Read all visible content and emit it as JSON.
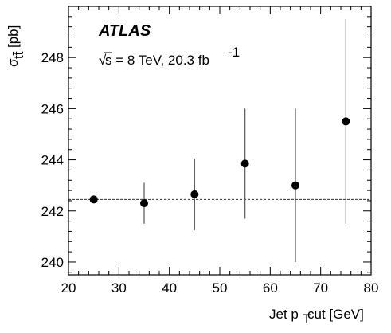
{
  "chart_data": {
    "type": "scatter",
    "x": [
      25,
      35,
      45,
      55,
      65,
      75
    ],
    "y": [
      242.45,
      242.3,
      242.65,
      243.85,
      243.0,
      245.5
    ],
    "y_err_high": [
      242.45,
      243.1,
      244.05,
      246.0,
      246.0,
      249.5
    ],
    "y_err_low": [
      242.45,
      241.5,
      241.25,
      241.7,
      240.0,
      241.5
    ],
    "reference_line": 242.45,
    "xlim": [
      20,
      80
    ],
    "ylim": [
      239.5,
      250
    ],
    "x_ticks": [
      "20",
      "30",
      "40",
      "50",
      "60",
      "70",
      "80"
    ],
    "y_ticks": [
      "240",
      "242",
      "244",
      "246",
      "248"
    ],
    "xlabel": {
      "prefix": "Jet p",
      "sub": "T",
      "suffix": " cut [GeV]"
    },
    "ylabel": {
      "main": "σ",
      "sub": "tt̄",
      "unit": " [pb]"
    },
    "annotations": {
      "experiment": "ATLAS",
      "sqrt_symbol": "√",
      "energy": "s = 8 TeV, 20.3 fb",
      "lumi_sup": "-1"
    },
    "grid": false,
    "legend": "none",
    "colors": {
      "points": "#000000",
      "error_bars": "#555555",
      "reference_line": "#333333",
      "frame": "#000000"
    }
  }
}
